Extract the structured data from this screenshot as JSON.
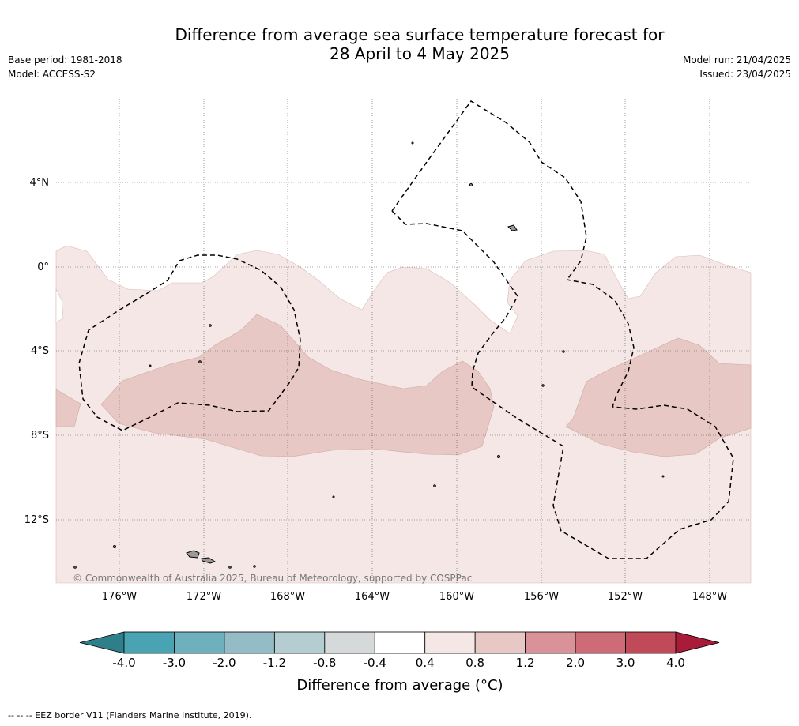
{
  "title": {
    "line1": "Difference from average sea surface temperature forecast for",
    "line2": "28 April to 4 May 2025"
  },
  "meta_left": {
    "base_period": "Base period: 1981-2018",
    "model": "Model: ACCESS-S2"
  },
  "meta_right": {
    "model_run": "Model run: 21/04/2025",
    "issued": "Issued: 23/04/2025"
  },
  "map": {
    "lat_labels": [
      "4°N",
      "0°",
      "4°S",
      "8°S",
      "12°S"
    ],
    "lon_labels": [
      "176°W",
      "172°W",
      "168°W",
      "164°W",
      "160°W",
      "156°W",
      "152°W",
      "148°W"
    ],
    "copyright": "© Commonwealth of Australia 2025, Bureau of Meteorology, supported by COSPPac",
    "colors": {
      "band_0_4_0_8": "#f4e7e6",
      "band_0_8_1_2": "#e8c8c4",
      "land": "#999999"
    }
  },
  "colorbar": {
    "ticks": [
      "-4.0",
      "-3.0",
      "-2.0",
      "-1.2",
      "-0.8",
      "-0.4",
      "0.4",
      "0.8",
      "1.2",
      "2.0",
      "3.0",
      "4.0"
    ],
    "colors": [
      "#2f7f8a",
      "#49a3b3",
      "#6fb0bd",
      "#93bcc6",
      "#b4cdd1",
      "#d6d9d9",
      "#ffffff",
      "#f4e7e6",
      "#e8c8c4",
      "#d99297",
      "#cd6c76",
      "#c14a59",
      "#a81c3a"
    ],
    "label": "Difference from average (°C)"
  },
  "footer": {
    "eez": "-- -- -- EEZ border V11 (Flanders Marine Institute, 2019)."
  }
}
